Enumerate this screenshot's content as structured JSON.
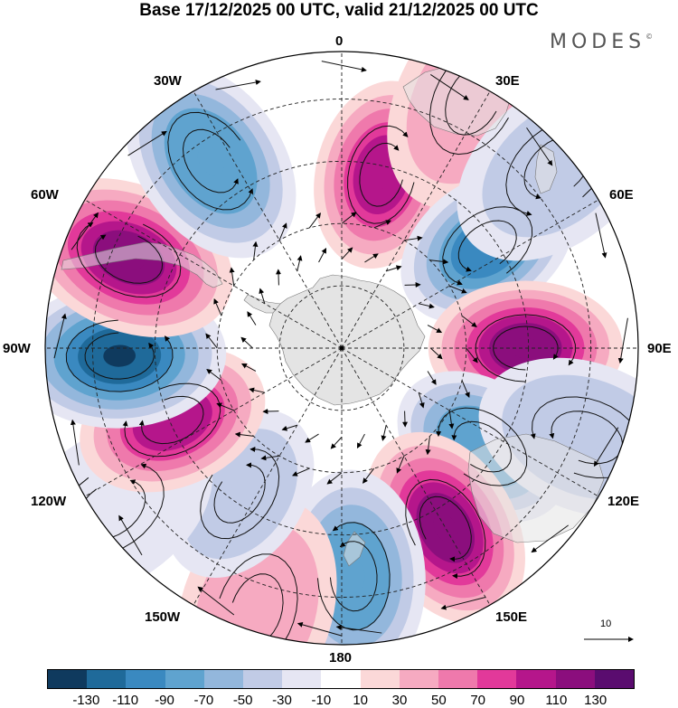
{
  "title": "Base 17/12/2025 00 UTC, valid 21/12/2025 00 UTC",
  "brand": "MODES",
  "brand_mark": "©",
  "longitude_labels": {
    "lon_0": "0",
    "lon_30e": "30E",
    "lon_60e": "60E",
    "lon_90e": "90E",
    "lon_120e": "120E",
    "lon_150e": "150E",
    "lon_180": "180",
    "lon_150w": "150W",
    "lon_120w": "120W",
    "lon_90w": "90W",
    "lon_60w": "60W",
    "lon_30w": "30W"
  },
  "vector_reference": {
    "value": "10"
  },
  "colorbar": {
    "colors": [
      "#0f3a5e",
      "#1f6a9a",
      "#3a89c0",
      "#5fa3cf",
      "#93b7dc",
      "#c1cbe6",
      "#e6e6f3",
      "#ffffff",
      "#fbd8d8",
      "#f6aac1",
      "#ef79ac",
      "#e2399a",
      "#b5168b",
      "#8b0e7d",
      "#5a0c6f"
    ],
    "labels": [
      "-130",
      "-110",
      "-90",
      "-70",
      "-50",
      "-30",
      "-10",
      "10",
      "30",
      "50",
      "70",
      "90",
      "110",
      "130"
    ]
  },
  "colors": {
    "land": "#e4e4e4",
    "grid": "#222222"
  },
  "anomaly_field": {
    "centers": [
      {
        "lon": 13,
        "colat": 0.6,
        "value": 92
      },
      {
        "lon": 28,
        "colat": 0.95,
        "value": 42
      },
      {
        "lon": 55,
        "colat": 0.6,
        "value": -92
      },
      {
        "lon": 50,
        "colat": 0.95,
        "value": -35
      },
      {
        "lon": 90,
        "colat": 0.62,
        "value": 125
      },
      {
        "lon": 125,
        "colat": 0.58,
        "value": -85
      },
      {
        "lon": 110,
        "colat": 0.88,
        "value": -45
      },
      {
        "lon": 150,
        "colat": 0.7,
        "value": 120
      },
      {
        "lon": 177,
        "colat": 0.77,
        "value": -72
      },
      {
        "lon": -162,
        "colat": 0.93,
        "value": 42
      },
      {
        "lon": -145,
        "colat": 0.6,
        "value": -42
      },
      {
        "lon": -125,
        "colat": 0.95,
        "value": -28
      },
      {
        "lon": -113,
        "colat": 0.62,
        "value": 95
      },
      {
        "lon": -92,
        "colat": 0.75,
        "value": -135
      },
      {
        "lon": -67,
        "colat": 0.78,
        "value": 110
      },
      {
        "lon": -35,
        "colat": 0.77,
        "value": -85
      }
    ]
  }
}
